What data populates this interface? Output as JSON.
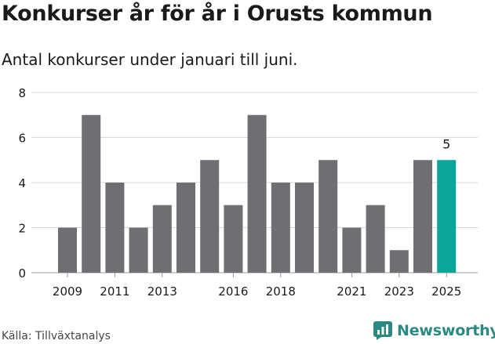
{
  "title": "Konkurser år för år i Orusts kommun",
  "subtitle": "Antal konkurser under januari till juni.",
  "source": "Källa: Tillväxtanalys",
  "brand": "Newsworthy",
  "colors": {
    "bar": "#6f6e73",
    "highlight": "#0ba699",
    "grid": "#d9d9d9",
    "brand": "#2a8a82"
  },
  "chart_data": {
    "type": "bar",
    "categories": [
      "2009",
      "2010",
      "2011",
      "2012",
      "2013",
      "2014",
      "2015",
      "2016",
      "2017",
      "2018",
      "2019",
      "2020",
      "2021",
      "2022",
      "2023",
      "2024",
      "2025"
    ],
    "values": [
      2,
      7,
      4,
      2,
      3,
      4,
      5,
      3,
      7,
      4,
      4,
      5,
      2,
      3,
      1,
      5,
      5
    ],
    "x_tick_labels": [
      "2009",
      "2011",
      "2013",
      "2016",
      "2018",
      "2021",
      "2023",
      "2025"
    ],
    "y_ticks": [
      0,
      2,
      4,
      6,
      8
    ],
    "ylim": [
      0,
      8
    ],
    "highlight_category": "2025",
    "data_labels": [
      {
        "category": "2025",
        "text": "5"
      }
    ],
    "grid": true
  }
}
